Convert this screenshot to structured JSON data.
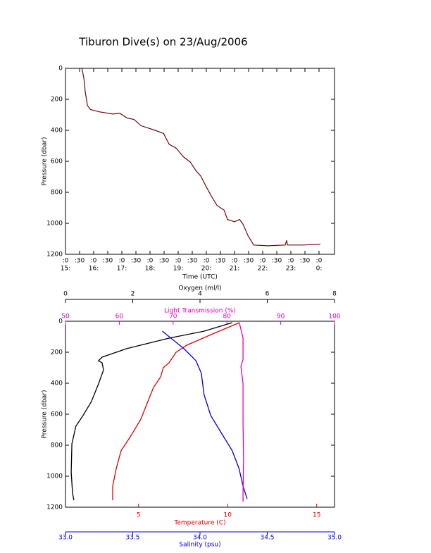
{
  "chart_data": [
    {
      "type": "line",
      "title": "Tiburon Dive(s) on 23/Aug/2006",
      "xlabel": "Time (UTC)",
      "ylabel": "Pressure (dbar)",
      "xlim": [
        15,
        24.55
      ],
      "ylim": [
        0,
        1200
      ],
      "y_inverted": true,
      "xticks": [
        {
          "value": 15,
          "label": ":0"
        },
        {
          "value": 15.5,
          "label": ":30"
        },
        {
          "value": 16,
          "label": ":0"
        },
        {
          "value": 16.5,
          "label": ":30"
        },
        {
          "value": 17,
          "label": ":0"
        },
        {
          "value": 17.5,
          "label": ":30"
        },
        {
          "value": 18,
          "label": ":0"
        },
        {
          "value": 18.5,
          "label": ":30"
        },
        {
          "value": 19,
          "label": ":0"
        },
        {
          "value": 19.5,
          "label": ":30"
        },
        {
          "value": 20,
          "label": ":0"
        },
        {
          "value": 20.5,
          "label": ":30"
        },
        {
          "value": 21,
          "label": ":0"
        },
        {
          "value": 21.5,
          "label": ":30"
        },
        {
          "value": 22,
          "label": ":0"
        },
        {
          "value": 22.5,
          "label": ":30"
        },
        {
          "value": 23,
          "label": ":0"
        },
        {
          "value": 23.5,
          "label": ":30"
        },
        {
          "value": 24,
          "label": ":0"
        }
      ],
      "xticks_hours": [
        {
          "value": 15,
          "label": "15:"
        },
        {
          "value": 16,
          "label": "16:"
        },
        {
          "value": 17,
          "label": "17:"
        },
        {
          "value": 18,
          "label": "18:"
        },
        {
          "value": 19,
          "label": "19:"
        },
        {
          "value": 20,
          "label": "20:"
        },
        {
          "value": 21,
          "label": "21:"
        },
        {
          "value": 22,
          "label": "22:"
        },
        {
          "value": 23,
          "label": "23:"
        },
        {
          "value": 24,
          "label": "0:"
        }
      ],
      "yticks": [
        0,
        200,
        400,
        600,
        800,
        1000,
        1200
      ],
      "series": [
        {
          "color": "#6b0a0a",
          "x": [
            15.58,
            15.65,
            15.7,
            15.78,
            15.88,
            16.18,
            16.68,
            16.93,
            17.18,
            17.43,
            17.68,
            18.18,
            18.48,
            18.68,
            18.93,
            19.18,
            19.43,
            19.63,
            19.8,
            20.0,
            20.18,
            20.38,
            20.63,
            20.75,
            21.0,
            21.18,
            21.3,
            21.48,
            21.68,
            22.18,
            22.8,
            22.85,
            22.88,
            23.43,
            24.05
          ],
          "values": [
            0,
            60,
            150,
            240,
            265,
            280,
            295,
            290,
            320,
            330,
            370,
            400,
            420,
            490,
            515,
            570,
            605,
            660,
            695,
            765,
            825,
            885,
            915,
            975,
            990,
            975,
            1005,
            1080,
            1140,
            1145,
            1140,
            1110,
            1140,
            1140,
            1135
          ]
        }
      ]
    },
    {
      "type": "profile",
      "ylabel": "Pressure (dbar)",
      "ylim": [
        0,
        1200
      ],
      "y_inverted": true,
      "yticks": [
        0,
        200,
        400,
        600,
        800,
        1000,
        1200
      ],
      "x_axes": [
        {
          "label": "Oxygen (ml/l)",
          "color": "#000000",
          "position": "top-outer",
          "lim": [
            0,
            8
          ],
          "ticks": [
            0,
            2,
            4,
            6,
            8
          ]
        },
        {
          "label": "Light Transmission (%)",
          "color": "#e000c0",
          "position": "top",
          "lim": [
            50,
            100
          ],
          "ticks": [
            50,
            60,
            70,
            80,
            90,
            100
          ]
        },
        {
          "label": "Temperature (C)",
          "color": "#e00000",
          "position": "bottom",
          "lim": [
            0.9,
            16
          ],
          "ticks": [
            5,
            10,
            15
          ]
        },
        {
          "label": "Salinity (psu)",
          "color": "#0000d0",
          "position": "bottom-outer",
          "lim": [
            33,
            35
          ],
          "ticks": [
            {
              "value": 33,
              "label": "33.0"
            },
            33.5,
            {
              "value": 34,
              "label": "34.0"
            },
            34.5,
            {
              "value": 35,
              "label": "35.0"
            }
          ]
        }
      ],
      "series": [
        {
          "color": "#000000",
          "xaxis": 0,
          "pressure": [
            9,
            64,
            109,
            177,
            232,
            255,
            268,
            314,
            405,
            518,
            609,
            677,
            791,
            973,
            1109,
            1155
          ],
          "values": [
            4.96,
            4.12,
            3.08,
            1.82,
            1.09,
            0.98,
            1.09,
            1.13,
            0.98,
            0.77,
            0.52,
            0.31,
            0.19,
            0.17,
            0.21,
            0.25
          ]
        },
        {
          "color": "#e00000",
          "xaxis": 2,
          "pressure": [
            9,
            86,
            155,
            200,
            268,
            300,
            359,
            427,
            518,
            632,
            745,
            836,
            950,
            1064,
            1155
          ],
          "values": [
            10.66,
            9.08,
            7.7,
            7.11,
            6.71,
            6.39,
            6.24,
            5.84,
            5.52,
            5.13,
            4.54,
            4.02,
            3.75,
            3.55,
            3.55
          ]
        },
        {
          "color": "#0000d0",
          "xaxis": 3,
          "pressure": [
            64,
            177,
            255,
            336,
            473,
            609,
            723,
            836,
            950,
            1064,
            1145
          ],
          "values": [
            33.72,
            33.88,
            33.97,
            34.01,
            34.03,
            34.08,
            34.16,
            34.24,
            34.29,
            34.32,
            34.35
          ]
        },
        {
          "color": "#e000c0",
          "xaxis": 1,
          "pressure": [
            9,
            109,
            245,
            291,
            405,
            655,
            882,
            1109,
            1164
          ],
          "values": [
            82.3,
            83.0,
            83.0,
            82.6,
            83.0,
            83.0,
            83.1,
            83.0,
            83.0
          ]
        }
      ]
    }
  ]
}
